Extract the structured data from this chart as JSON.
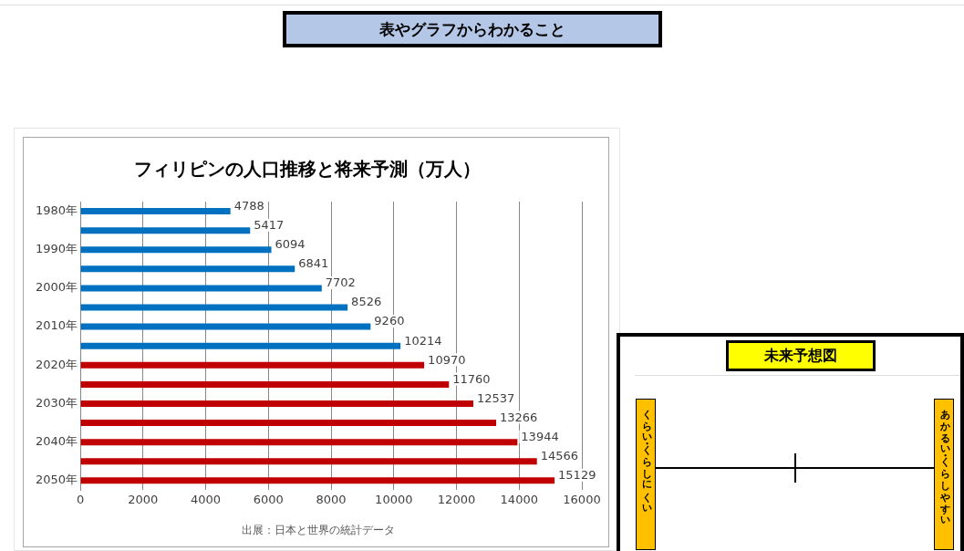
{
  "chart_data": [
    {
      "type": "other",
      "title": "表やグラフからわかること"
    },
    {
      "type": "bar",
      "orientation": "horizontal",
      "title": "フィリピンの人口推移と将来予測（万人）",
      "categories": [
        "1980年",
        null,
        "1990年",
        null,
        "2000年",
        null,
        "2010年",
        null,
        "2020年",
        null,
        "2030年",
        null,
        "2040年",
        null,
        "2050年"
      ],
      "values": [
        4788,
        5417,
        6094,
        6841,
        7702,
        8526,
        9260,
        10214,
        10970,
        11760,
        12537,
        13266,
        13944,
        14566,
        15129
      ],
      "colors": [
        "#0070c0",
        "#0070c0",
        "#0070c0",
        "#0070c0",
        "#0070c0",
        "#0070c0",
        "#0070c0",
        "#0070c0",
        "#c00000",
        "#c00000",
        "#c00000",
        "#c00000",
        "#c00000",
        "#c00000",
        "#c00000"
      ],
      "xlim": [
        0,
        16000
      ],
      "xticks": [
        0,
        2000,
        4000,
        6000,
        8000,
        10000,
        12000,
        14000,
        16000
      ],
      "grid": "x",
      "legend": false,
      "data_labels": true,
      "annotations": [
        "出展：日本と世界の統計データ"
      ]
    },
    {
      "type": "other",
      "title": "未来予想図",
      "annotations": [
        "くらい・くらしにくい",
        "あかるい・くらしやすい"
      ]
    }
  ]
}
